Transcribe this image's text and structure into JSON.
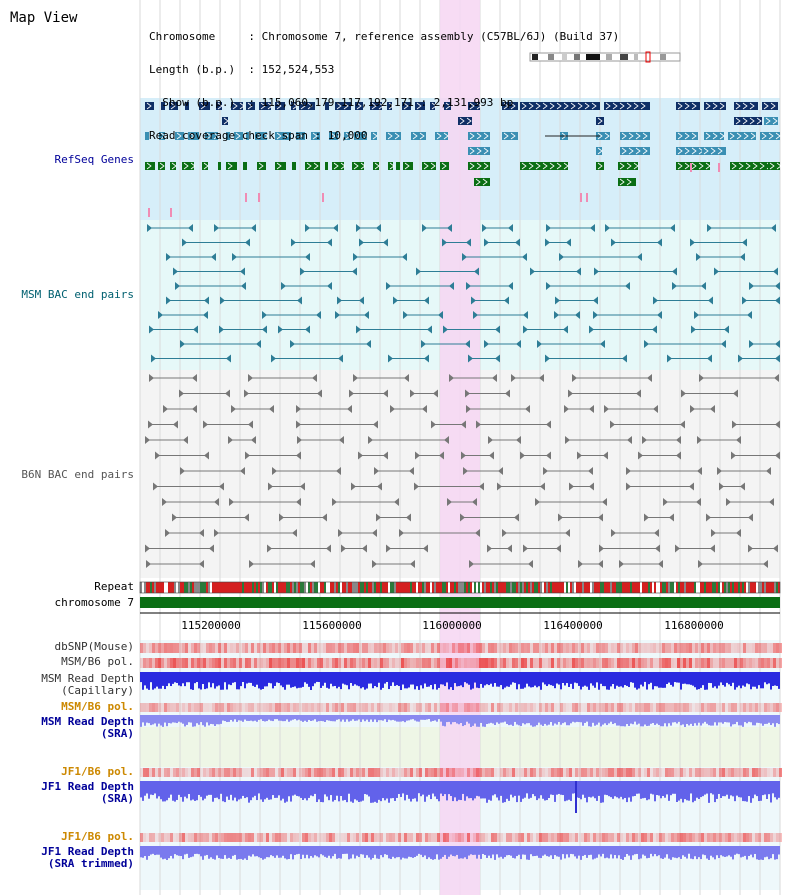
{
  "title": "Map View",
  "header": {
    "lines": [
      "Chromosome     : Chromosome 7, reference assembly (C57BL/6J) (Build 37)",
      "Length (b.p.)  : 152,524,553",
      "  Show (b.p.)  : 115,060,179-117,192,171 : 2,131,993 bp",
      "Read coverage check span : 10,000"
    ]
  },
  "tracks": {
    "refseq": "RefSeq Genes",
    "msm_bac": "MSM BAC end pairs",
    "b6n_bac": "B6N BAC end pairs",
    "repeat": "Repeat",
    "chromosome": "chromosome 7",
    "dbsnp": "dbSNP(Mouse)",
    "msm_pol1": "MSM/B6 pol.",
    "msm_depth_cap": "MSM Read Depth\n(Capillary)",
    "msm_pol2": "MSM/B6 pol.",
    "msm_depth_sra": "MSM Read Depth\n(SRA)",
    "jf1_pol1": "JF1/B6 pol.",
    "jf1_depth_sra": "JF1 Read Depth\n(SRA)",
    "jf1_pol2": "JF1/B6 pol.",
    "jf1_depth_trim": "JF1 Read Depth\n(SRA trimmed)"
  },
  "positions": [
    "115200000",
    "115600000",
    "116000000",
    "116400000",
    "116800000"
  ],
  "colors": {
    "label_dark": "#333333",
    "label_blue": "#000099",
    "label_orange": "#cc8800",
    "highlight": "#f6d6f2",
    "refseq_bg": "#d6eef9",
    "bac_bg": "#e6f8f8",
    "gene_navy": "#0f2f66",
    "gene_teal": "#3a8fb3",
    "gene_green": "#0a6e14",
    "chromosome_green": "#0a6e14",
    "depth_blue": "#2a2ae0"
  }
}
